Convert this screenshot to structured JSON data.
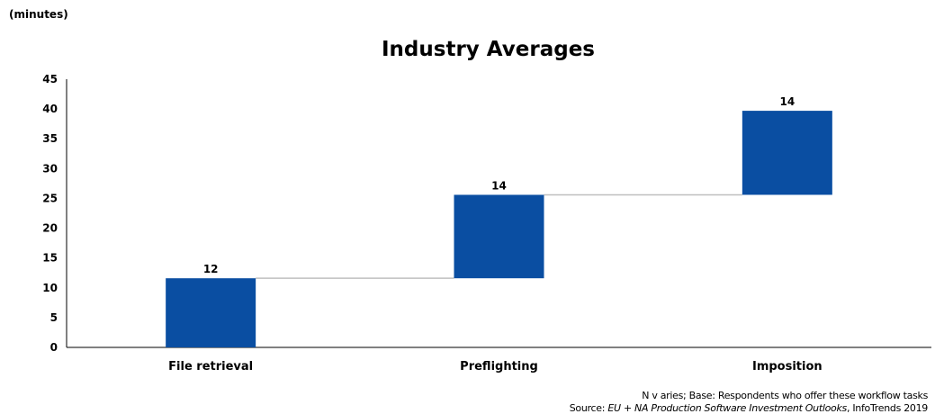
{
  "unit_label": "(minutes)",
  "footnote": {
    "line1": "N v aries; Base: Respondents who offer these workflow tasks",
    "line2_prefix": "Source: ",
    "line2_italic": "EU + NA Production Software Investment Outlooks",
    "line2_suffix": ", InfoTrends 2019"
  },
  "chart_data": {
    "type": "bar",
    "subtype": "waterfall",
    "title": "Industry Averages",
    "xlabel": "",
    "ylabel": "",
    "ylim": [
      0,
      45
    ],
    "yticks": [
      0,
      5,
      10,
      15,
      20,
      25,
      30,
      35,
      40,
      45
    ],
    "categories": [
      "File retrieval",
      "Preflighting",
      "Imposition"
    ],
    "values": [
      12,
      14,
      14
    ],
    "bar_starts": [
      0,
      11.6,
      25.6
    ],
    "bar_ends": [
      11.6,
      25.6,
      39.7
    ],
    "data_labels": [
      "12",
      "14",
      "14"
    ],
    "connectors": true,
    "grid": false,
    "legend": "none",
    "bar_color": "#0a4ea2",
    "connector_color": "#bfbfbf"
  }
}
